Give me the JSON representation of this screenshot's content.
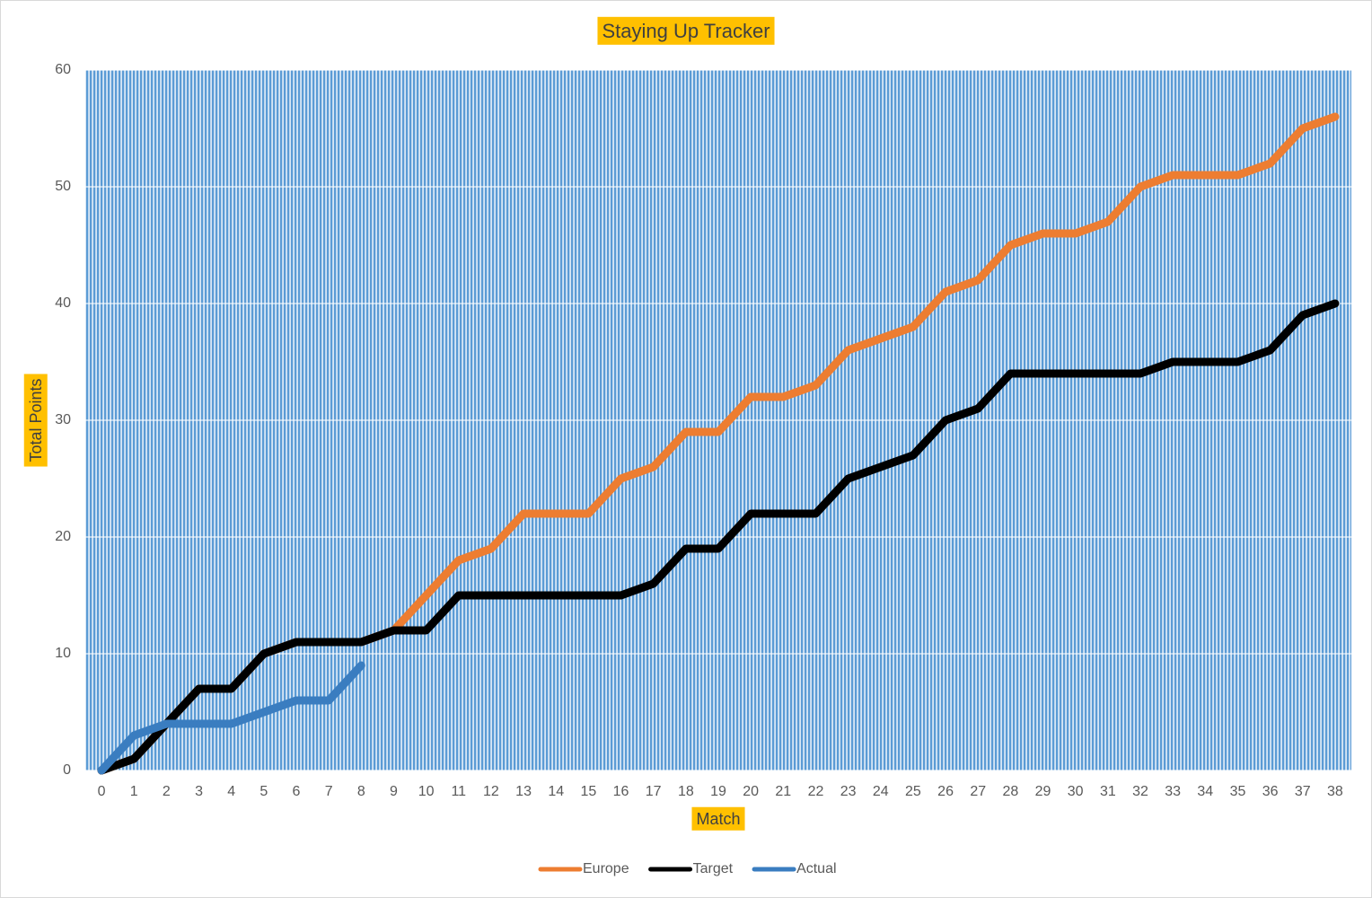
{
  "chart_data": {
    "type": "line",
    "title": "Staying Up Tracker",
    "x_label": "Match",
    "y_label": "Total Points",
    "x": [
      0,
      1,
      2,
      3,
      4,
      5,
      6,
      7,
      8,
      9,
      10,
      11,
      12,
      13,
      14,
      15,
      16,
      17,
      18,
      19,
      20,
      21,
      22,
      23,
      24,
      25,
      26,
      27,
      28,
      29,
      30,
      31,
      32,
      33,
      34,
      35,
      36,
      37,
      38
    ],
    "series": [
      {
        "name": "Europe",
        "color": "#ed7d31",
        "values": [
          0,
          1,
          4,
          7,
          7,
          10,
          11,
          11,
          11,
          12,
          15,
          18,
          19,
          22,
          22,
          22,
          25,
          26,
          29,
          29,
          32,
          32,
          33,
          36,
          37,
          38,
          41,
          42,
          45,
          46,
          46,
          47,
          50,
          51,
          51,
          51,
          52,
          55,
          56
        ]
      },
      {
        "name": "Target",
        "color": "#000000",
        "values": [
          0,
          1,
          4,
          7,
          7,
          10,
          11,
          11,
          11,
          12,
          12,
          15,
          15,
          15,
          15,
          15,
          15,
          16,
          19,
          19,
          22,
          22,
          22,
          25,
          26,
          27,
          30,
          31,
          34,
          34,
          34,
          34,
          34,
          35,
          35,
          35,
          36,
          39,
          40
        ]
      },
      {
        "name": "Actual",
        "color": "#3a7dc0",
        "values": [
          0,
          3,
          4,
          4,
          4,
          5,
          6,
          6,
          9,
          null,
          null,
          null,
          null,
          null,
          null,
          null,
          null,
          null,
          null,
          null,
          null,
          null,
          null,
          null,
          null,
          null,
          null,
          null,
          null,
          null,
          null,
          null,
          null,
          null,
          null,
          null,
          null,
          null,
          null
        ]
      }
    ],
    "ylim": [
      0,
      60
    ],
    "yticks": [
      0,
      10,
      20,
      30,
      40,
      50,
      60
    ],
    "grid": true,
    "legend": "bottom"
  }
}
